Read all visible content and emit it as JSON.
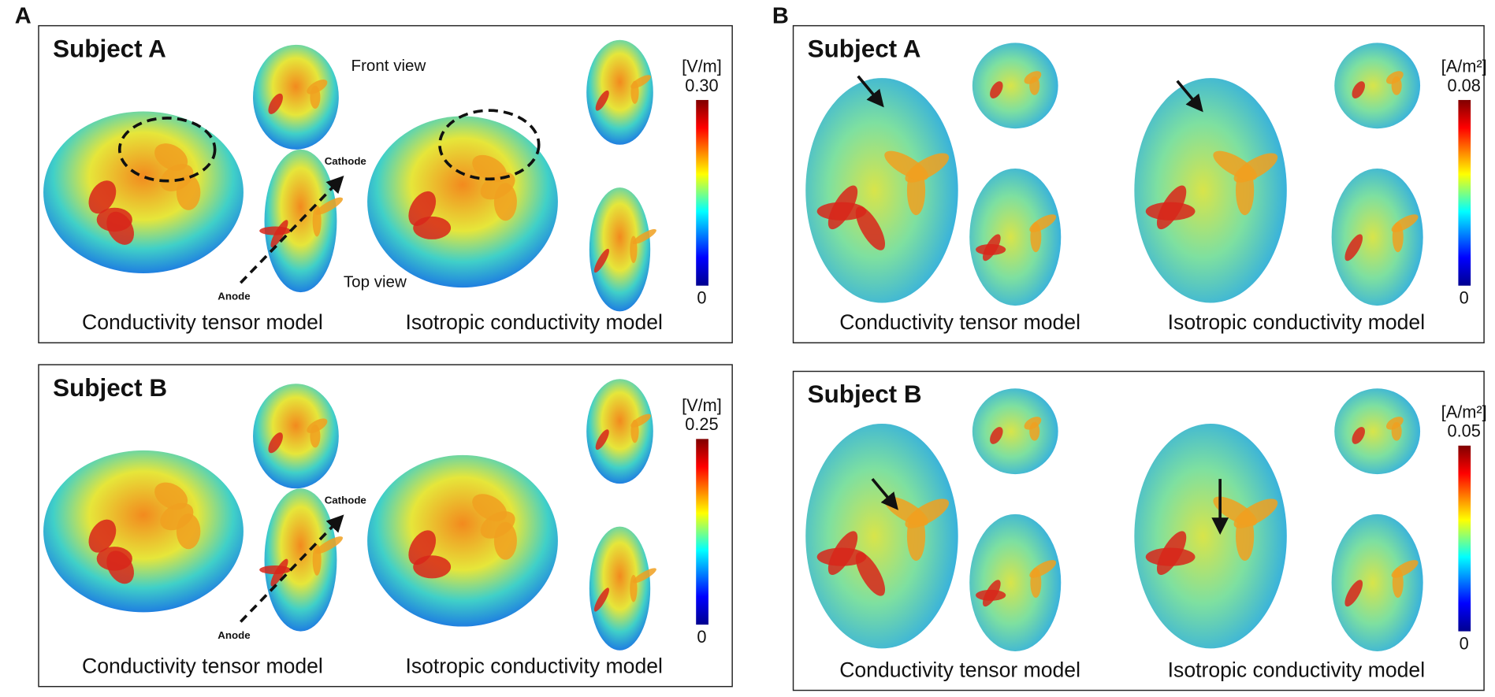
{
  "figure": {
    "panels": [
      {
        "label": "A",
        "subplots": [
          {
            "title": "Subject A",
            "front_view": "Front view",
            "top_view": "Top view",
            "cathode": "Cathode",
            "anode": "Anode",
            "colorbar": {
              "unit": "[V/m]",
              "max": "0.30",
              "min": "0"
            },
            "captions": [
              "Conductivity tensor model",
              "Isotropic conductivity model"
            ]
          },
          {
            "title": "Subject B",
            "cathode": "Cathode",
            "anode": "Anode",
            "colorbar": {
              "unit": "[V/m]",
              "max": "0.25",
              "min": "0"
            },
            "captions": [
              "Conductivity tensor model",
              "Isotropic conductivity model"
            ]
          }
        ]
      },
      {
        "label": "B",
        "subplots": [
          {
            "title": "Subject A",
            "colorbar": {
              "unit": "[A/m²]",
              "max": "0.08",
              "min": "0"
            },
            "captions": [
              "Conductivity tensor model",
              "Isotropic conductivity model"
            ]
          },
          {
            "title": "Subject B",
            "colorbar": {
              "unit": "[A/m²]",
              "max": "0.05",
              "min": "0"
            },
            "captions": [
              "Conductivity tensor model",
              "Isotropic conductivity model"
            ]
          }
        ]
      }
    ]
  }
}
